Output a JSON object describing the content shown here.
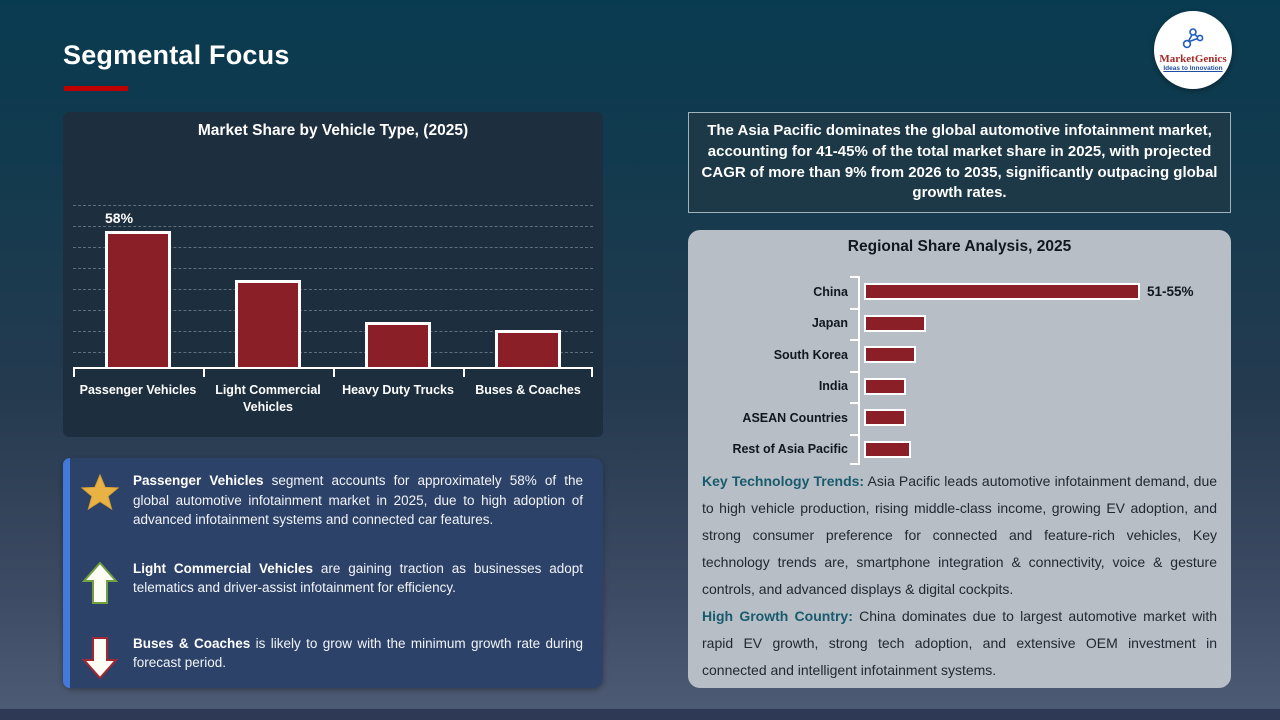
{
  "slide": {
    "title": "Segmental Focus"
  },
  "logo": {
    "name": "MarketGenics",
    "tagline": "Ideas to Innovation"
  },
  "chart_data": [
    {
      "type": "bar",
      "orientation": "vertical",
      "title": "Market Share by Vehicle Type, (2025)",
      "categories": [
        "Passenger Vehicles",
        "Light Commercial Vehicles",
        "Heavy Duty Trucks",
        "Buses & Coaches"
      ],
      "values": [
        58,
        37,
        19,
        16
      ],
      "data_labels": [
        "58%",
        "",
        "",
        ""
      ],
      "ylabel": "",
      "xlabel": "",
      "ylim": [
        0,
        70
      ],
      "grid": "dashed horizontal gridlines",
      "bar_color": "#8b1f28",
      "bar_border_color": "#ffffff",
      "note": "only the 58% value is labeled on the chart; other values estimated from bar heights"
    },
    {
      "type": "bar",
      "orientation": "horizontal",
      "title": "Regional Share Analysis, 2025",
      "categories": [
        "China",
        "Japan",
        "South Korea",
        "India",
        "ASEAN Countries",
        "Rest of Asia Pacific"
      ],
      "values": [
        53,
        12,
        10,
        8,
        8,
        9
      ],
      "data_labels": [
        "51-55%",
        "",
        "",
        "",
        "",
        ""
      ],
      "xlim": [
        0,
        60
      ],
      "grid": "off",
      "bar_color": "#8b1f28",
      "bar_border_color": "#ffffff",
      "note": "only China's value (51-55%) is labeled; other values estimated from bar lengths"
    }
  ],
  "highlight_box": {
    "text": "The Asia Pacific dominates the global automotive infotainment market, accounting for 41-45% of the total market share in 2025, with projected CAGR of more than 9% from 2026 to 2035, significantly outpacing global growth rates."
  },
  "insights": [
    {
      "icon": "star",
      "lead": "Passenger Vehicles",
      "text": " segment accounts for approximately 58% of the global automotive infotainment market in 2025, due to high adoption of advanced infotainment systems and connected car features."
    },
    {
      "icon": "arrow-up",
      "lead": "Light Commercial Vehicles",
      "text": " are gaining traction as businesses adopt telematics and driver-assist infotainment for efficiency."
    },
    {
      "icon": "arrow-down",
      "lead": "Buses & Coaches",
      "text": " is likely to grow with the minimum growth rate during forecast period."
    }
  ],
  "regional_notes": [
    {
      "lead": "Key Technology Trends:",
      "text": " Asia Pacific leads automotive infotainment demand, due to high vehicle production, rising middle-class income, growing EV adoption, and strong consumer preference for connected and feature-rich vehicles, Key technology trends are, smartphone integration & connectivity, voice & gesture controls, and advanced displays & digital cockpits."
    },
    {
      "lead": "High Growth Country:",
      "text": " China dominates due to largest automotive market with rapid EV growth, strong tech adoption, and extensive OEM investment in connected and intelligent infotainment systems."
    }
  ],
  "colors": {
    "accent_red": "#c00000",
    "bar_red": "#8b1f28",
    "panel_dark": "#1d2e3f",
    "insight_blue": "#2d4269",
    "insight_stripe": "#4379d8",
    "regional_gray": "#b7bec5",
    "teal_lead": "#185b6e",
    "star_gold": "#e9b245",
    "arrow_up_green": "#70a040",
    "arrow_down_red": "#a02832"
  }
}
